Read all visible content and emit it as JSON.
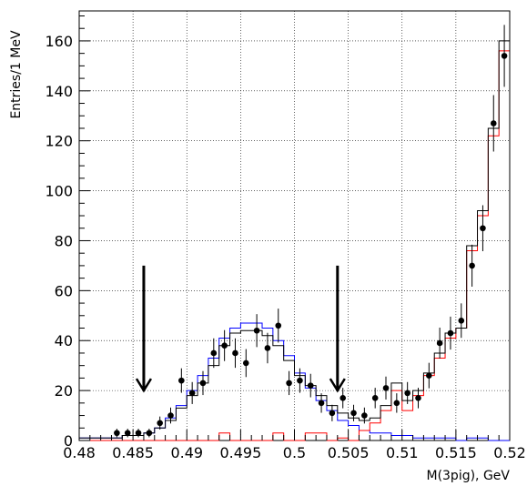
{
  "chart_data": {
    "type": "histogram",
    "xlabel": "M(3pig), GeV",
    "ylabel": "Entries/1 MeV",
    "xlim": [
      0.48,
      0.52
    ],
    "ylim": [
      0,
      172
    ],
    "grid": true,
    "x_ticks": [
      0.48,
      0.485,
      0.49,
      0.495,
      0.5,
      0.505,
      0.51,
      0.515,
      0.52
    ],
    "x_tick_labels": [
      "0.48",
      "0.485",
      "0.49",
      "0.495",
      "0.5",
      "0.505",
      "0.51",
      "0.515",
      "0.52"
    ],
    "y_ticks": [
      0,
      20,
      40,
      60,
      80,
      100,
      120,
      140,
      160
    ],
    "y_tick_labels": [
      "0",
      "20",
      "40",
      "60",
      "80",
      "100",
      "120",
      "140",
      "160"
    ],
    "bin_edges": [
      0.48,
      0.481,
      0.482,
      0.483,
      0.484,
      0.485,
      0.486,
      0.487,
      0.488,
      0.489,
      0.49,
      0.491,
      0.492,
      0.493,
      0.494,
      0.495,
      0.496,
      0.497,
      0.498,
      0.499,
      0.5,
      0.501,
      0.502,
      0.503,
      0.504,
      0.505,
      0.506,
      0.507,
      0.508,
      0.509,
      0.51,
      0.511,
      0.512,
      0.513,
      0.514,
      0.515,
      0.516,
      0.517,
      0.518,
      0.519,
      0.52
    ],
    "series": [
      {
        "kind": "step",
        "color": "#000000",
        "values": [
          1,
          1,
          1,
          1,
          2,
          2,
          3,
          5,
          8,
          13,
          18,
          23,
          30,
          38,
          43,
          44,
          44,
          42,
          38,
          32,
          26,
          22,
          18,
          14,
          11,
          9,
          8,
          9,
          14,
          23,
          16,
          20,
          27,
          35,
          43,
          45,
          78,
          92,
          125,
          160
        ]
      },
      {
        "kind": "step",
        "color": "#0000ff",
        "values": [
          1,
          1,
          1,
          1,
          2,
          2,
          3,
          5,
          9,
          14,
          20,
          26,
          33,
          41,
          45,
          47,
          47,
          45,
          40,
          34,
          27,
          21,
          16,
          12,
          8,
          6,
          4,
          3,
          3,
          2,
          2,
          1,
          1,
          1,
          1,
          0,
          1,
          1,
          0,
          0
        ]
      },
      {
        "kind": "step",
        "color": "#ff0000",
        "values": [
          0,
          0,
          0,
          0,
          0,
          0,
          0,
          0,
          0,
          0,
          0,
          0,
          0,
          3,
          0,
          0,
          0,
          0,
          3,
          0,
          0,
          3,
          3,
          0,
          1,
          0,
          4,
          7,
          12,
          20,
          12,
          18,
          26,
          33,
          41,
          45,
          76,
          90,
          122,
          156
        ]
      }
    ],
    "points": [
      {
        "x": 0.4835,
        "y": 3,
        "err": 1.7
      },
      {
        "x": 0.4845,
        "y": 3,
        "err": 1.7
      },
      {
        "x": 0.4855,
        "y": 3,
        "err": 1.7
      },
      {
        "x": 0.4865,
        "y": 3,
        "err": 1.7
      },
      {
        "x": 0.4875,
        "y": 7,
        "err": 2.6
      },
      {
        "x": 0.4885,
        "y": 10,
        "err": 3.2
      },
      {
        "x": 0.4895,
        "y": 24,
        "err": 4.9
      },
      {
        "x": 0.4905,
        "y": 19,
        "err": 4.4
      },
      {
        "x": 0.4915,
        "y": 23,
        "err": 4.8
      },
      {
        "x": 0.4925,
        "y": 35,
        "err": 5.9
      },
      {
        "x": 0.4935,
        "y": 38,
        "err": 6.2
      },
      {
        "x": 0.4945,
        "y": 35,
        "err": 5.9
      },
      {
        "x": 0.4955,
        "y": 31,
        "err": 5.6
      },
      {
        "x": 0.4965,
        "y": 44,
        "err": 6.6
      },
      {
        "x": 0.4975,
        "y": 37,
        "err": 6.1
      },
      {
        "x": 0.4985,
        "y": 46,
        "err": 6.8
      },
      {
        "x": 0.4995,
        "y": 23,
        "err": 4.8
      },
      {
        "x": 0.5005,
        "y": 24,
        "err": 4.9
      },
      {
        "x": 0.5015,
        "y": 22,
        "err": 4.7
      },
      {
        "x": 0.5025,
        "y": 15,
        "err": 3.9
      },
      {
        "x": 0.5035,
        "y": 11,
        "err": 3.3
      },
      {
        "x": 0.5045,
        "y": 17,
        "err": 4.1
      },
      {
        "x": 0.5055,
        "y": 11,
        "err": 3.3
      },
      {
        "x": 0.5065,
        "y": 10,
        "err": 3.2
      },
      {
        "x": 0.5075,
        "y": 17,
        "err": 4.1
      },
      {
        "x": 0.5085,
        "y": 21,
        "err": 4.6
      },
      {
        "x": 0.5095,
        "y": 15,
        "err": 3.9
      },
      {
        "x": 0.5105,
        "y": 19,
        "err": 4.4
      },
      {
        "x": 0.5115,
        "y": 17,
        "err": 4.1
      },
      {
        "x": 0.5125,
        "y": 26,
        "err": 5.1
      },
      {
        "x": 0.5135,
        "y": 39,
        "err": 6.2
      },
      {
        "x": 0.5145,
        "y": 43,
        "err": 6.6
      },
      {
        "x": 0.5155,
        "y": 48,
        "err": 6.9
      },
      {
        "x": 0.5165,
        "y": 70,
        "err": 8.4
      },
      {
        "x": 0.5175,
        "y": 85,
        "err": 9.2
      },
      {
        "x": 0.5185,
        "y": 127,
        "err": 11.3
      },
      {
        "x": 0.5195,
        "y": 154,
        "err": 12.4
      }
    ],
    "arrows": [
      {
        "x": 0.486,
        "y_from": 70,
        "y_to": 20
      },
      {
        "x": 0.504,
        "y_from": 70,
        "y_to": 20
      }
    ]
  }
}
